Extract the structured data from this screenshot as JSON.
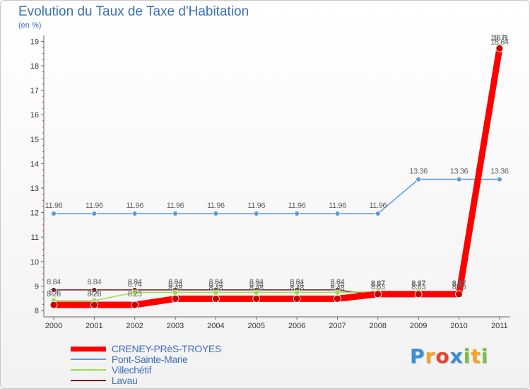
{
  "chart_data": {
    "type": "line",
    "title": "Evolution du Taux de Taxe d'Habitation",
    "ylabel": "(en %)",
    "xlabel": "",
    "categories": [
      "2000",
      "2001",
      "2002",
      "2003",
      "2004",
      "2005",
      "2006",
      "2007",
      "2008",
      "2009",
      "2010",
      "2011"
    ],
    "ylim": [
      8,
      19
    ],
    "yticks": [
      "8",
      "9",
      "10",
      "11",
      "12",
      "13",
      "14",
      "15",
      "16",
      "17",
      "18",
      "19"
    ],
    "grid": false,
    "series": [
      {
        "name": "CRENEY-PRèS-TROYES",
        "color": "#ff0000",
        "values": [
          8.23,
          8.23,
          8.23,
          8.48,
          8.48,
          8.48,
          8.48,
          8.48,
          8.67,
          8.67,
          8.67,
          18.71
        ],
        "labels": [
          "8.23",
          "8.23",
          "8.23",
          "8.48",
          "8.48",
          "8.48",
          "8.48",
          "8.48",
          "8.67",
          "8.67",
          "8.67",
          "18.71"
        ]
      },
      {
        "name": "Pont-Sainte-Marie",
        "color": "#5b9bd5",
        "values": [
          11.96,
          11.96,
          11.96,
          11.96,
          11.96,
          11.96,
          11.96,
          11.96,
          11.96,
          13.36,
          13.36,
          13.36
        ],
        "labels": [
          "11.96",
          "11.96",
          "11.96",
          "11.96",
          "11.96",
          "11.96",
          "11.96",
          "11.96",
          "11.96",
          "13.36",
          "13.36",
          "13.36"
        ]
      },
      {
        "name": "Villechétif",
        "color": "#99dd55",
        "values": [
          8.4,
          8.4,
          8.74,
          8.74,
          8.74,
          8.74,
          8.74,
          8.74,
          8.77,
          8.77,
          8.77,
          18.8
        ],
        "labels": [
          "8.4",
          "8.4",
          "8.74",
          "8.74",
          "8.74",
          "8.74",
          "8.74",
          "8.74",
          "8.77",
          "8.77",
          "8.77",
          "18.8"
        ]
      },
      {
        "name": "Lavau",
        "color": "#7a1f1f",
        "values": [
          8.84,
          8.84,
          8.84,
          8.84,
          8.84,
          8.84,
          8.84,
          8.84,
          8.63,
          8.63,
          8.63,
          18.64
        ],
        "labels": [
          "8.84",
          "8.84",
          "8.84",
          "8.84",
          "8.84",
          "8.84",
          "8.84",
          "8.84",
          "8.63",
          "8.63",
          "8.63",
          "18.64"
        ]
      }
    ]
  },
  "logo": {
    "letters": [
      "P",
      "r",
      "o",
      "x",
      "i",
      "t",
      "i"
    ],
    "colors": [
      "#3a8fd8",
      "#f5a623",
      "#e8442e",
      "#3a8fd8",
      "#7cc242",
      "#f5a623",
      "#7cc242"
    ]
  }
}
